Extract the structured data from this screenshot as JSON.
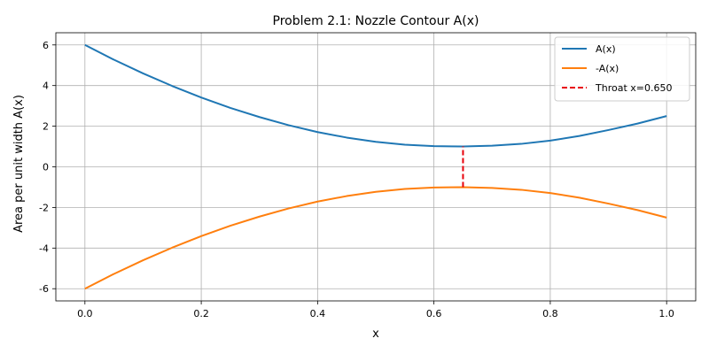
{
  "chart_data": {
    "type": "line",
    "title": "Problem 2.1: Nozzle Contour A(x)",
    "xlabel": "x",
    "ylabel": "Area per unit width A(x)",
    "xlim": [
      -0.05,
      1.05
    ],
    "ylim": [
      -6.6,
      6.6
    ],
    "xticks": [
      0.0,
      0.2,
      0.4,
      0.6,
      0.8,
      1.0
    ],
    "xtick_labels": [
      "0.0",
      "0.2",
      "0.4",
      "0.6",
      "0.8",
      "1.0"
    ],
    "yticks": [
      6,
      4,
      2,
      0,
      -2,
      -4,
      -6
    ],
    "ytick_labels": [
      "6",
      "4",
      "2",
      "0",
      "-2",
      "-4",
      "-6"
    ],
    "grid": true,
    "legend_position": "top-right",
    "series": [
      {
        "name": "A(x)",
        "color": "#1f77b4",
        "style": "solid",
        "x": [
          0.0,
          0.05,
          0.1,
          0.15,
          0.2,
          0.25,
          0.3,
          0.35,
          0.4,
          0.45,
          0.5,
          0.55,
          0.6,
          0.65,
          0.7,
          0.75,
          0.8,
          0.85,
          0.9,
          0.95,
          1.0
        ],
        "y": [
          6.0,
          5.27,
          4.6,
          3.98,
          3.41,
          2.9,
          2.45,
          2.05,
          1.71,
          1.44,
          1.23,
          1.09,
          1.02,
          1.0,
          1.04,
          1.13,
          1.29,
          1.52,
          1.81,
          2.13,
          2.5
        ]
      },
      {
        "name": "-A(x)",
        "color": "#ff7f0e",
        "style": "solid",
        "x": [
          0.0,
          0.05,
          0.1,
          0.15,
          0.2,
          0.25,
          0.3,
          0.35,
          0.4,
          0.45,
          0.5,
          0.55,
          0.6,
          0.65,
          0.7,
          0.75,
          0.8,
          0.85,
          0.9,
          0.95,
          1.0
        ],
        "y": [
          -6.0,
          -5.27,
          -4.6,
          -3.98,
          -3.41,
          -2.9,
          -2.45,
          -2.05,
          -1.71,
          -1.44,
          -1.23,
          -1.09,
          -1.02,
          -1.0,
          -1.04,
          -1.13,
          -1.29,
          -1.52,
          -1.81,
          -2.13,
          -2.5
        ]
      },
      {
        "name": "Throat x=0.650",
        "color": "#e8000b",
        "style": "dashed",
        "x": [
          0.65,
          0.65
        ],
        "y": [
          -1.0,
          1.0
        ]
      }
    ]
  }
}
